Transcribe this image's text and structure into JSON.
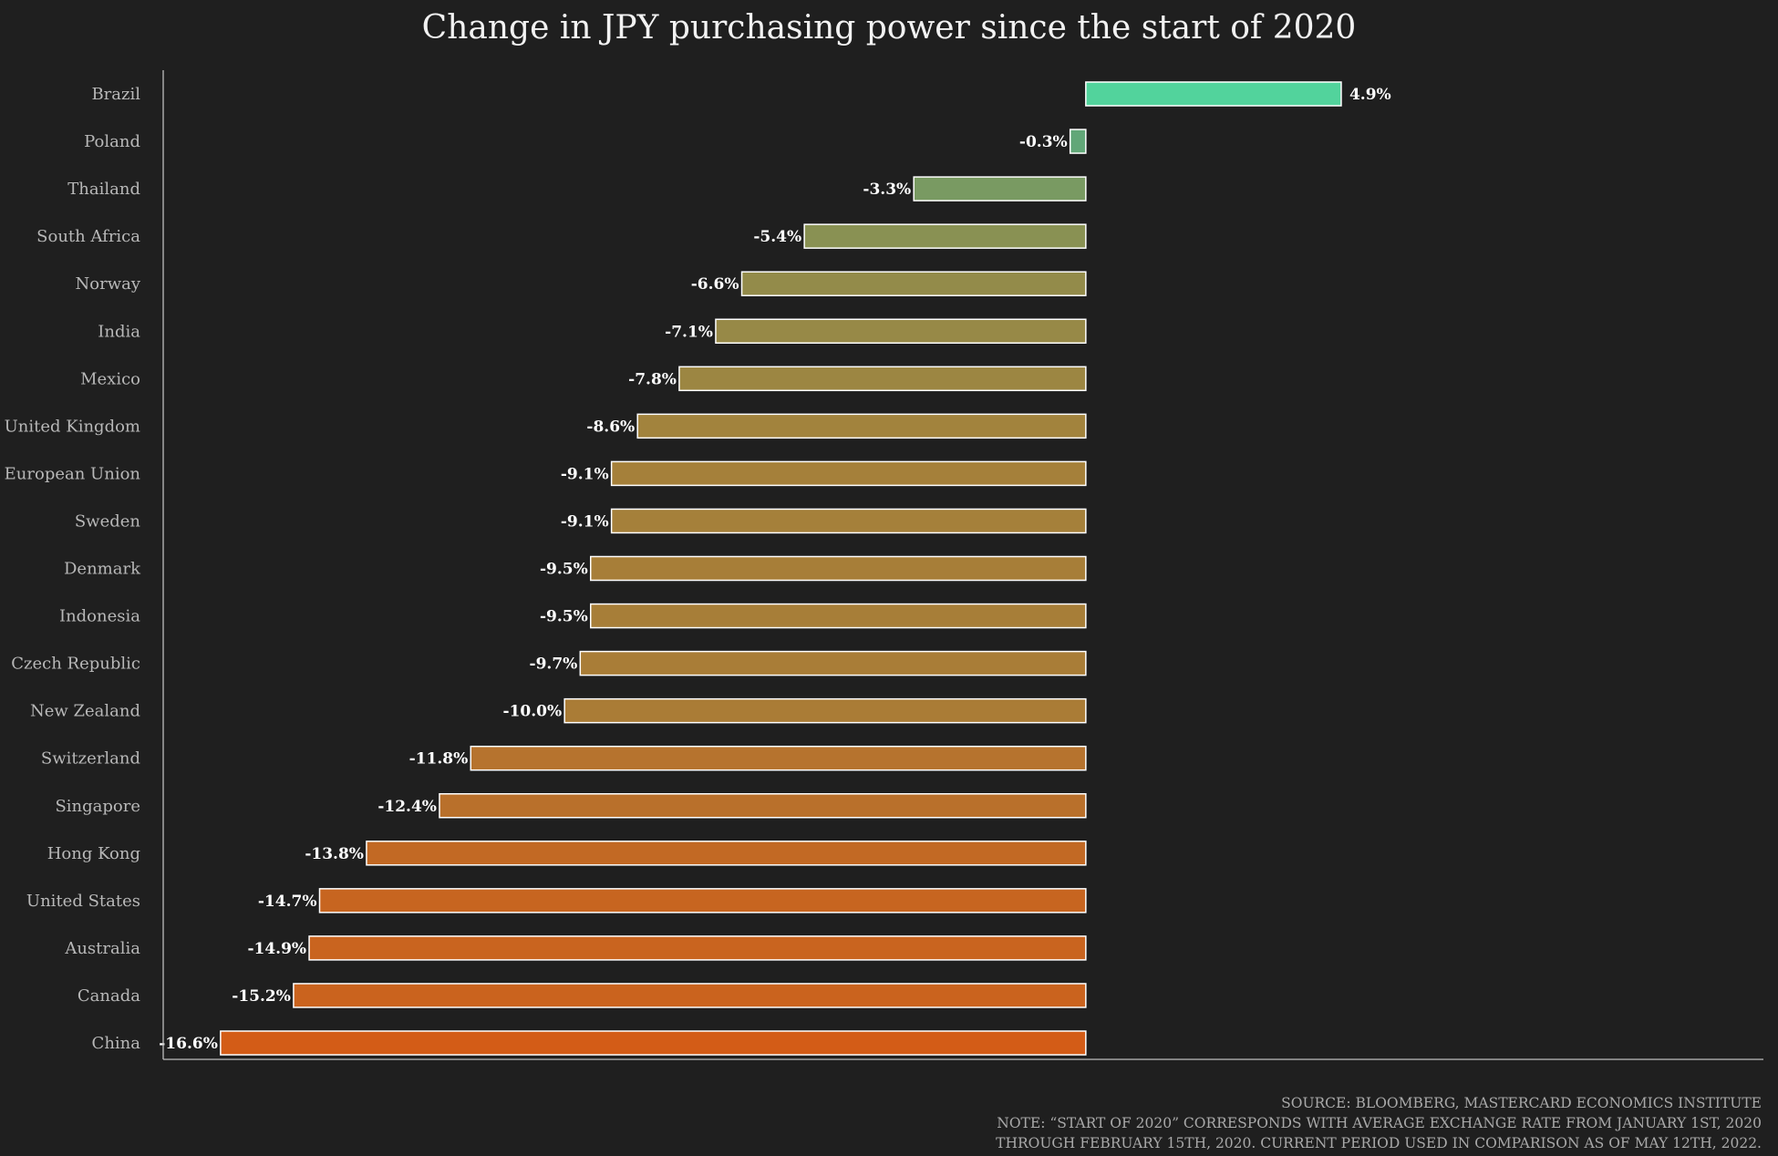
{
  "chart_data": {
    "type": "bar",
    "orientation": "horizontal",
    "title": "Change in JPY purchasing power since the start of 2020",
    "xlabel": "",
    "ylabel": "",
    "grid": false,
    "xlim": [
      -17.7,
      13.0
    ],
    "categories": [
      "Brazil",
      "Poland",
      "Thailand",
      "South Africa",
      "Norway",
      "India",
      "Mexico",
      "United Kingdom",
      "European Union",
      "Sweden",
      "Denmark",
      "Indonesia",
      "Czech Republic",
      "New Zealand",
      "Switzerland",
      "Singapore",
      "Hong Kong",
      "United States",
      "Australia",
      "Canada",
      "China"
    ],
    "values": [
      4.9,
      -0.3,
      -3.3,
      -5.4,
      -6.6,
      -7.1,
      -7.8,
      -8.6,
      -9.1,
      -9.1,
      -9.5,
      -9.5,
      -9.7,
      -10.0,
      -11.8,
      -12.4,
      -13.8,
      -14.7,
      -14.9,
      -15.2,
      -16.6
    ],
    "value_labels": [
      "4.9%",
      "-0.3%",
      "-3.3%",
      "-5.4%",
      "-6.6%",
      "-7.1%",
      "-7.8%",
      "-8.6%",
      "-9.1%",
      "-9.1%",
      "-9.5%",
      "-9.5%",
      "-9.7%",
      "-10.0%",
      "-11.8%",
      "-12.4%",
      "-13.8%",
      "-14.7%",
      "-14.9%",
      "-15.2%",
      "-16.6%"
    ],
    "colors": {
      "positive": "#52d39c",
      "gradient_low": "#5fa87a",
      "gradient_mid": "#a0843e",
      "gradient_high": "#d35c17",
      "background": "#1f1f1f",
      "bar_edge": "#ffffff"
    },
    "notes": [
      "SOURCE: BLOOMBERG, MASTERCARD ECONOMICS INSTITUTE",
      "NOTE: “START OF 2020” CORRESPONDS WITH AVERAGE EXCHANGE RATE FROM JANUARY 1ST, 2020",
      "THROUGH FEBRUARY 15TH, 2020. CURRENT PERIOD USED IN COMPARISON AS OF MAY 12TH, 2022."
    ]
  }
}
